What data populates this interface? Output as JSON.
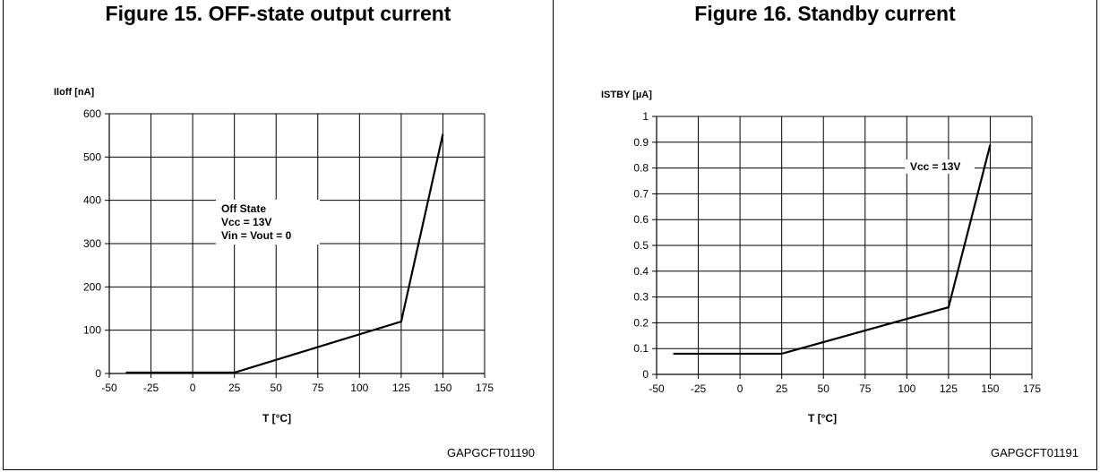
{
  "figures": [
    {
      "title": "Figure 15. OFF-state output current",
      "code": "GAPGCFT01190"
    },
    {
      "title": "Figure 16. Standby current",
      "code": "GAPGCFT01191"
    }
  ],
  "chart_data": [
    {
      "type": "line",
      "title": "Figure 15. OFF-state output current",
      "xlabel": "T [°C]",
      "ylabel": "Iloff [nA]",
      "xlim": [
        -50,
        175
      ],
      "ylim": [
        0,
        600
      ],
      "xticks": [
        -50,
        -25,
        0,
        25,
        50,
        75,
        100,
        125,
        150,
        175
      ],
      "yticks": [
        0,
        100,
        200,
        300,
        400,
        500,
        600
      ],
      "ytick_labels": [
        "0",
        "100",
        "200",
        "300",
        "400",
        "500",
        "600"
      ],
      "grid": true,
      "annotation": [
        "Off State",
        "Vcc = 13V",
        "Vin = Vout = 0"
      ],
      "series": [
        {
          "x": [
            -40,
            25,
            125,
            150
          ],
          "y": [
            2,
            2,
            120,
            553
          ]
        }
      ]
    },
    {
      "type": "line",
      "title": "Figure 16. Standby current",
      "xlabel": "T [°C]",
      "ylabel": "ISTBY [µA]",
      "xlim": [
        -50,
        175
      ],
      "ylim": [
        0,
        1
      ],
      "xticks": [
        -50,
        -25,
        0,
        25,
        50,
        75,
        100,
        125,
        150,
        175
      ],
      "yticks": [
        0,
        0.1,
        0.2,
        0.3,
        0.4,
        0.5,
        0.6,
        0.7,
        0.8,
        0.9,
        1
      ],
      "ytick_labels": [
        "0",
        "0.1",
        "0.2",
        "0.3",
        "0.4",
        "0.5",
        "0.6",
        "0.7",
        "0.8",
        "0.9",
        "1"
      ],
      "grid": true,
      "annotation": [
        "Vcc = 13V"
      ],
      "series": [
        {
          "x": [
            -40,
            25,
            125,
            150
          ],
          "y": [
            0.08,
            0.08,
            0.26,
            0.89
          ]
        }
      ]
    }
  ]
}
